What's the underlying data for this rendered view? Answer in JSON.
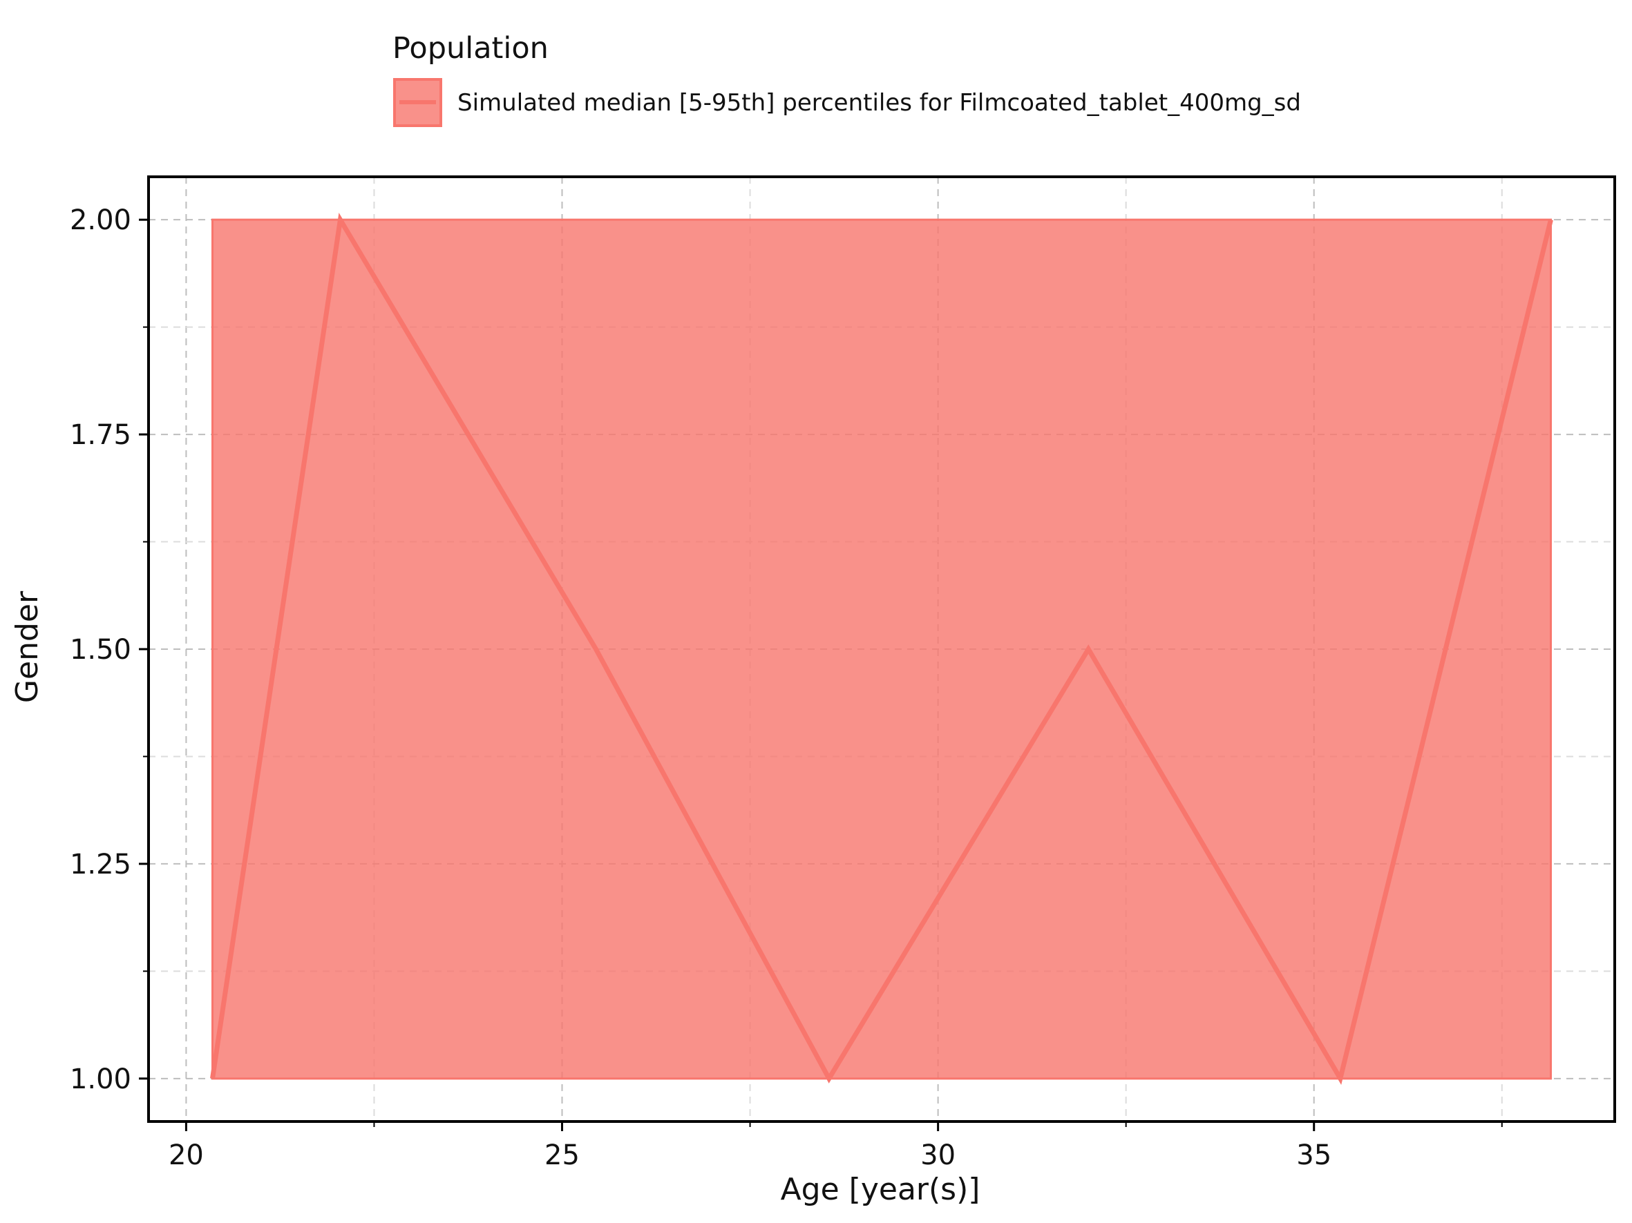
{
  "chart_data": {
    "type": "area",
    "legend": {
      "title": "Population",
      "placement": "top",
      "entries": [
        "Simulated  median [5-95th] percentiles for Filmcoated_tablet_400mg_sd"
      ]
    },
    "xlabel": "Age [year(s)]",
    "ylabel": "Gender",
    "xlim": [
      19.5,
      39.0
    ],
    "ylim": [
      0.95,
      2.05
    ],
    "x_major_ticks": [
      20,
      25,
      30,
      35
    ],
    "x_minor_ticks": [
      22.5,
      27.5,
      32.5,
      37.5
    ],
    "y_major_ticks": [
      1.0,
      1.25,
      1.5,
      1.75,
      2.0
    ],
    "y_minor_ticks": [
      1.125,
      1.375,
      1.625,
      1.875
    ],
    "x_tick_labels": [
      "20",
      "25",
      "30",
      "35"
    ],
    "y_tick_labels": [
      "1.00",
      "1.25",
      "1.50",
      "1.75",
      "2.00"
    ],
    "grid": true,
    "colors": {
      "line": "#f8766d",
      "fill": "#f8766d"
    },
    "series": [
      {
        "name": "Simulated  median [5-95th] percentiles for Filmcoated_tablet_400mg_sd",
        "x": [
          20.35,
          22.05,
          25.45,
          28.55,
          32.0,
          35.35,
          38.15
        ],
        "median": [
          1.0,
          2.0,
          1.5,
          1.0,
          1.5,
          1.0,
          2.0
        ],
        "p5": [
          1.0,
          1.0,
          1.0,
          1.0,
          1.0,
          1.0,
          1.0
        ],
        "p95": [
          2.0,
          2.0,
          2.0,
          2.0,
          2.0,
          2.0,
          2.0
        ]
      }
    ]
  }
}
